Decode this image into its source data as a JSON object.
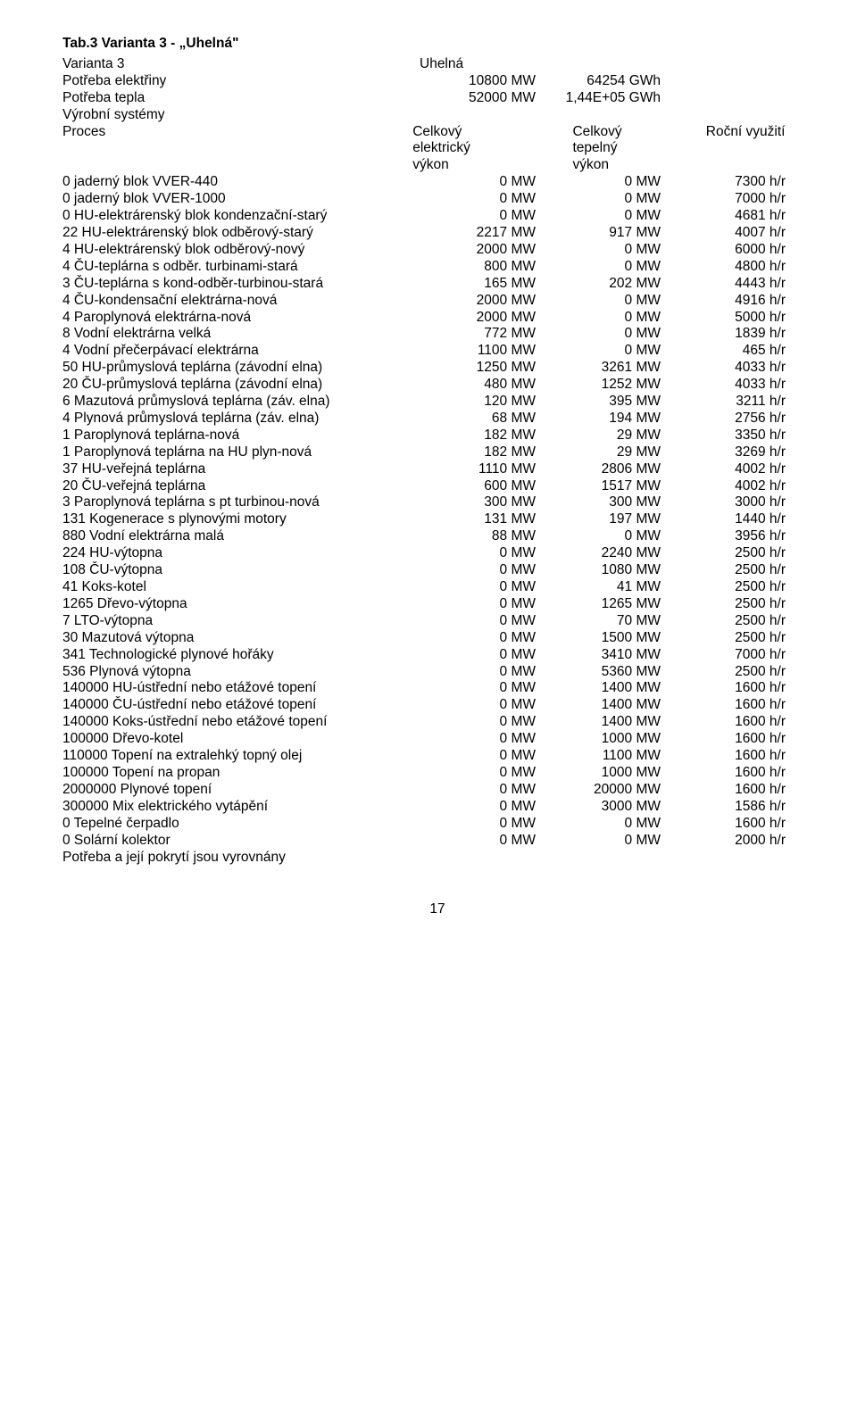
{
  "title": "Tab.3  Varianta 3 - „Uhelná\"",
  "variant_label": "Varianta 3",
  "variant_name": "Uhelná",
  "elec_need_label": "Potřeba elektřiny",
  "elec_need_mw": "10800 MW",
  "elec_need_gwh": "64254 GWh",
  "heat_need_label": "Potřeba tepla",
  "heat_need_mw": "52000 MW",
  "heat_need_gwh": "1,44E+05 GWh",
  "systems_label": "Výrobní systémy",
  "hdr_proces": "Proces",
  "hdr_c1a": "Celkový",
  "hdr_c1b": "elektrický",
  "hdr_c1c": "výkon",
  "hdr_c2a": "Celkový",
  "hdr_c2b": "tepelný",
  "hdr_c2c": "výkon",
  "hdr_c3a": "Roční využití",
  "rows": [
    {
      "n": "0 jaderný blok VVER-440",
      "e": "0 MW",
      "t": "0 MW",
      "u": "7300 h/r"
    },
    {
      "n": "0 jaderný blok VVER-1000",
      "e": "0 MW",
      "t": "0 MW",
      "u": "7000 h/r"
    },
    {
      "n": "0 HU-elektrárenský blok kondenzační-starý",
      "e": "0 MW",
      "t": "0 MW",
      "u": "4681 h/r"
    },
    {
      "n": "22 HU-elektrárenský blok odběrový-starý",
      "e": "2217 MW",
      "t": "917 MW",
      "u": "4007 h/r"
    },
    {
      "n": "4 HU-elektrárenský blok odběrový-nový",
      "e": "2000 MW",
      "t": "0 MW",
      "u": "6000 h/r"
    },
    {
      "n": "4 ČU-teplárna s odběr. turbinami-stará",
      "e": "800 MW",
      "t": "0 MW",
      "u": "4800 h/r"
    },
    {
      "n": "3 ČU-teplárna s kond-odběr-turbinou-stará",
      "e": "165 MW",
      "t": "202 MW",
      "u": "4443 h/r"
    },
    {
      "n": "4 ČU-kondensační elektrárna-nová",
      "e": "2000 MW",
      "t": "0 MW",
      "u": "4916 h/r"
    },
    {
      "n": "4 Paroplynová elektrárna-nová",
      "e": "2000 MW",
      "t": "0 MW",
      "u": "5000 h/r"
    },
    {
      "n": "8 Vodní elektrárna velká",
      "e": "772 MW",
      "t": "0 MW",
      "u": "1839 h/r"
    },
    {
      "n": "4 Vodní přečerpávací elektrárna",
      "e": "1100 MW",
      "t": "0 MW",
      "u": "465 h/r"
    },
    {
      "n": "50 HU-průmyslová teplárna (závodní elna)",
      "e": "1250 MW",
      "t": "3261 MW",
      "u": "4033 h/r"
    },
    {
      "n": "20 ČU-průmyslová teplárna (závodní elna)",
      "e": "480 MW",
      "t": "1252 MW",
      "u": "4033 h/r"
    },
    {
      "n": "6 Mazutová průmyslová teplárna (záv. elna)",
      "e": "120 MW",
      "t": "395 MW",
      "u": "3211 h/r"
    },
    {
      "n": "4 Plynová průmyslová teplárna (záv. elna)",
      "e": "68 MW",
      "t": "194 MW",
      "u": "2756 h/r"
    },
    {
      "n": "1 Paroplynová teplárna-nová",
      "e": "182 MW",
      "t": "29 MW",
      "u": "3350 h/r"
    },
    {
      "n": "1 Paroplynová teplárna na HU plyn-nová",
      "e": "182 MW",
      "t": "29 MW",
      "u": "3269 h/r"
    },
    {
      "n": "37 HU-veřejná teplárna",
      "e": "1110 MW",
      "t": "2806 MW",
      "u": "4002 h/r"
    },
    {
      "n": "20 ČU-veřejná teplárna",
      "e": "600 MW",
      "t": "1517 MW",
      "u": "4002 h/r"
    },
    {
      "n": "3 Paroplynová teplárna s pt turbinou-nová",
      "e": "300 MW",
      "t": "300 MW",
      "u": "3000 h/r"
    },
    {
      "n": "131 Kogenerace s plynovými motory",
      "e": "131 MW",
      "t": "197 MW",
      "u": "1440 h/r"
    },
    {
      "n": "880 Vodní elektrárna malá",
      "e": "88 MW",
      "t": "0 MW",
      "u": "3956 h/r"
    },
    {
      "n": "224 HU-výtopna",
      "e": "0 MW",
      "t": "2240 MW",
      "u": "2500 h/r"
    },
    {
      "n": "108 ČU-výtopna",
      "e": "0 MW",
      "t": "1080 MW",
      "u": "2500 h/r"
    },
    {
      "n": "41 Koks-kotel",
      "e": "0 MW",
      "t": "41 MW",
      "u": "2500 h/r"
    },
    {
      "n": "1265 Dřevo-výtopna",
      "e": "0 MW",
      "t": "1265 MW",
      "u": "2500 h/r"
    },
    {
      "n": "7 LTO-výtopna",
      "e": "0 MW",
      "t": "70 MW",
      "u": "2500 h/r"
    },
    {
      "n": "30 Mazutová výtopna",
      "e": "0 MW",
      "t": "1500 MW",
      "u": "2500 h/r"
    },
    {
      "n": "341 Technologické plynové hořáky",
      "e": "0 MW",
      "t": "3410 MW",
      "u": "7000 h/r"
    },
    {
      "n": "536 Plynová výtopna",
      "e": "0 MW",
      "t": "5360 MW",
      "u": "2500 h/r"
    },
    {
      "n": "140000 HU-ústřední nebo etážové topení",
      "e": "0 MW",
      "t": "1400 MW",
      "u": "1600 h/r"
    },
    {
      "n": "140000 ČU-ústřední nebo etážové topení",
      "e": "0 MW",
      "t": "1400 MW",
      "u": "1600 h/r"
    },
    {
      "n": "140000 Koks-ústřední nebo etážové topení",
      "e": "0 MW",
      "t": "1400 MW",
      "u": "1600 h/r"
    },
    {
      "n": "100000 Dřevo-kotel",
      "e": "0 MW",
      "t": "1000 MW",
      "u": "1600 h/r"
    },
    {
      "n": "110000 Topení na extralehký topný olej",
      "e": "0 MW",
      "t": "1100 MW",
      "u": "1600 h/r"
    },
    {
      "n": "100000 Topení na propan",
      "e": "0 MW",
      "t": "1000 MW",
      "u": "1600 h/r"
    },
    {
      "n": "2000000 Plynové topení",
      "e": "0 MW",
      "t": "20000 MW",
      "u": "1600 h/r"
    },
    {
      "n": "300000 Mix elektrického vytápění",
      "e": "0 MW",
      "t": "3000 MW",
      "u": "1586 h/r"
    },
    {
      "n": "0 Tepelné čerpadlo",
      "e": "0 MW",
      "t": "0 MW",
      "u": "1600 h/r"
    },
    {
      "n": "0 Solární kolektor",
      "e": "0 MW",
      "t": "0 MW",
      "u": "2000 h/r"
    }
  ],
  "footer_note": "Potřeba a její pokrytí jsou vyrovnány",
  "page_number": "17"
}
